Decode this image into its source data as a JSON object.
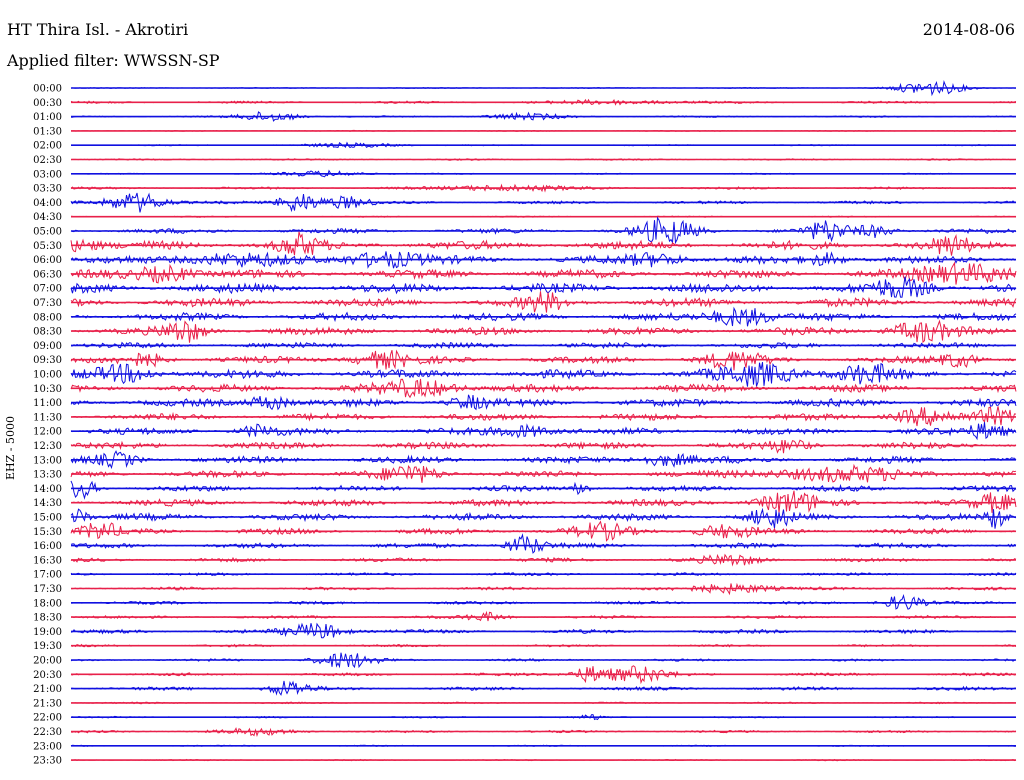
{
  "header": {
    "station": "HT Thira Isl. - Akrotiri",
    "date": "2014-08-06",
    "filter": "Applied filter: WWSSN-SP"
  },
  "axis": {
    "ylabel": "EHZ - 5000"
  },
  "colors": {
    "even": "#1010e0",
    "odd": "#e8204a",
    "text": "#000000"
  },
  "chart_data": {
    "type": "line",
    "description_kind": "helicorder",
    "row_labels": [
      "00:00",
      "00:30",
      "01:00",
      "01:30",
      "02:00",
      "02:30",
      "03:00",
      "03:30",
      "04:00",
      "04:30",
      "05:00",
      "05:30",
      "06:00",
      "06:30",
      "07:00",
      "07:30",
      "08:00",
      "08:30",
      "09:00",
      "09:30",
      "10:00",
      "10:30",
      "11:00",
      "11:30",
      "12:00",
      "12:30",
      "13:00",
      "13:30",
      "14:00",
      "14:30",
      "15:00",
      "15:30",
      "16:00",
      "16:30",
      "17:00",
      "17:30",
      "18:00",
      "18:30",
      "19:00",
      "19:30",
      "20:00",
      "20:30",
      "21:00",
      "21:30",
      "22:00",
      "22:30",
      "23:00",
      "23:30"
    ],
    "noise_level": [
      0.5,
      1.2,
      0.8,
      0.5,
      0.6,
      0.8,
      0.6,
      1.2,
      1.5,
      0.6,
      2.5,
      4.5,
      4.0,
      4.5,
      5.0,
      4.5,
      4.0,
      4.0,
      3.0,
      3.5,
      4.5,
      4.0,
      4.0,
      3.5,
      3.5,
      3.5,
      3.5,
      3.5,
      3.0,
      3.5,
      3.5,
      3.0,
      2.5,
      2.0,
      1.5,
      1.5,
      1.5,
      1.5,
      2.0,
      1.2,
      1.2,
      1.5,
      1.8,
      0.8,
      0.8,
      1.2,
      0.6,
      0.6
    ],
    "events": [
      [
        [
          0.91,
          7,
          0.035
        ]
      ],
      [
        [
          0.58,
          2,
          0.06
        ]
      ],
      [
        [
          0.21,
          5,
          0.03
        ],
        [
          0.48,
          3,
          0.04
        ]
      ],
      [],
      [
        [
          0.3,
          2,
          0.05
        ]
      ],
      [],
      [
        [
          0.27,
          3,
          0.04
        ]
      ],
      [
        [
          0.46,
          3,
          0.06
        ]
      ],
      [
        [
          0.07,
          10,
          0.03
        ],
        [
          0.24,
          10,
          0.02
        ],
        [
          0.29,
          6,
          0.025
        ]
      ],
      [],
      [
        [
          0.63,
          12,
          0.03
        ],
        [
          0.8,
          10,
          0.02
        ],
        [
          0.85,
          6,
          0.02
        ]
      ],
      [
        [
          0.01,
          6,
          0.02
        ],
        [
          0.24,
          10,
          0.02
        ],
        [
          0.93,
          8,
          0.02
        ]
      ],
      [
        [
          0.17,
          6,
          0.05
        ],
        [
          0.33,
          8,
          0.04
        ],
        [
          0.62,
          6,
          0.03
        ],
        [
          0.8,
          6,
          0.02
        ]
      ],
      [
        [
          0.1,
          8,
          0.03
        ],
        [
          0.95,
          10,
          0.05
        ]
      ],
      [
        [
          0.88,
          8,
          0.03
        ]
      ],
      [
        [
          0.5,
          8,
          0.02
        ]
      ],
      [
        [
          0.71,
          10,
          0.03
        ]
      ],
      [
        [
          0.12,
          10,
          0.02
        ],
        [
          0.9,
          10,
          0.03
        ]
      ],
      [],
      [
        [
          0.08,
          6,
          0.02
        ],
        [
          0.33,
          8,
          0.03
        ],
        [
          0.7,
          8,
          0.03
        ],
        [
          0.94,
          7,
          0.02
        ]
      ],
      [
        [
          0.06,
          8,
          0.03
        ],
        [
          0.73,
          10,
          0.04
        ],
        [
          0.84,
          8,
          0.03
        ]
      ],
      [
        [
          0.37,
          8,
          0.04
        ]
      ],
      [
        [
          0.21,
          8,
          0.02
        ],
        [
          0.42,
          6,
          0.02
        ]
      ],
      [
        [
          0.9,
          8,
          0.03
        ],
        [
          0.98,
          8,
          0.02
        ]
      ],
      [
        [
          0.2,
          6,
          0.02
        ],
        [
          0.48,
          6,
          0.03
        ],
        [
          0.97,
          8,
          0.02
        ]
      ],
      [
        [
          0.76,
          6,
          0.02
        ]
      ],
      [
        [
          0.05,
          6,
          0.02
        ],
        [
          0.63,
          6,
          0.03
        ]
      ],
      [
        [
          0.36,
          8,
          0.03
        ],
        [
          0.81,
          6,
          0.08
        ]
      ],
      [
        [
          0.01,
          10,
          0.015
        ],
        [
          0.54,
          6,
          0.01
        ]
      ],
      [
        [
          0.76,
          10,
          0.03
        ],
        [
          0.98,
          8,
          0.02
        ]
      ],
      [
        [
          0.01,
          8,
          0.01
        ],
        [
          0.74,
          10,
          0.02
        ],
        [
          0.98,
          12,
          0.01
        ]
      ],
      [
        [
          0.03,
          8,
          0.02
        ],
        [
          0.56,
          7,
          0.03
        ],
        [
          0.69,
          6,
          0.03
        ]
      ],
      [
        [
          0.48,
          10,
          0.02
        ]
      ],
      [
        [
          0.7,
          5,
          0.03
        ]
      ],
      [],
      [
        [
          0.7,
          5,
          0.04
        ]
      ],
      [
        [
          0.88,
          8,
          0.02
        ]
      ],
      [
        [
          0.44,
          4,
          0.02
        ]
      ],
      [
        [
          0.26,
          8,
          0.03
        ]
      ],
      [],
      [
        [
          0.29,
          8,
          0.03
        ]
      ],
      [
        [
          0.55,
          8,
          0.02
        ],
        [
          0.6,
          8,
          0.03
        ]
      ],
      [
        [
          0.23,
          8,
          0.02
        ]
      ],
      [],
      [
        [
          0.55,
          3,
          0.01
        ]
      ],
      [
        [
          0.2,
          3,
          0.04
        ]
      ],
      [],
      []
    ]
  }
}
